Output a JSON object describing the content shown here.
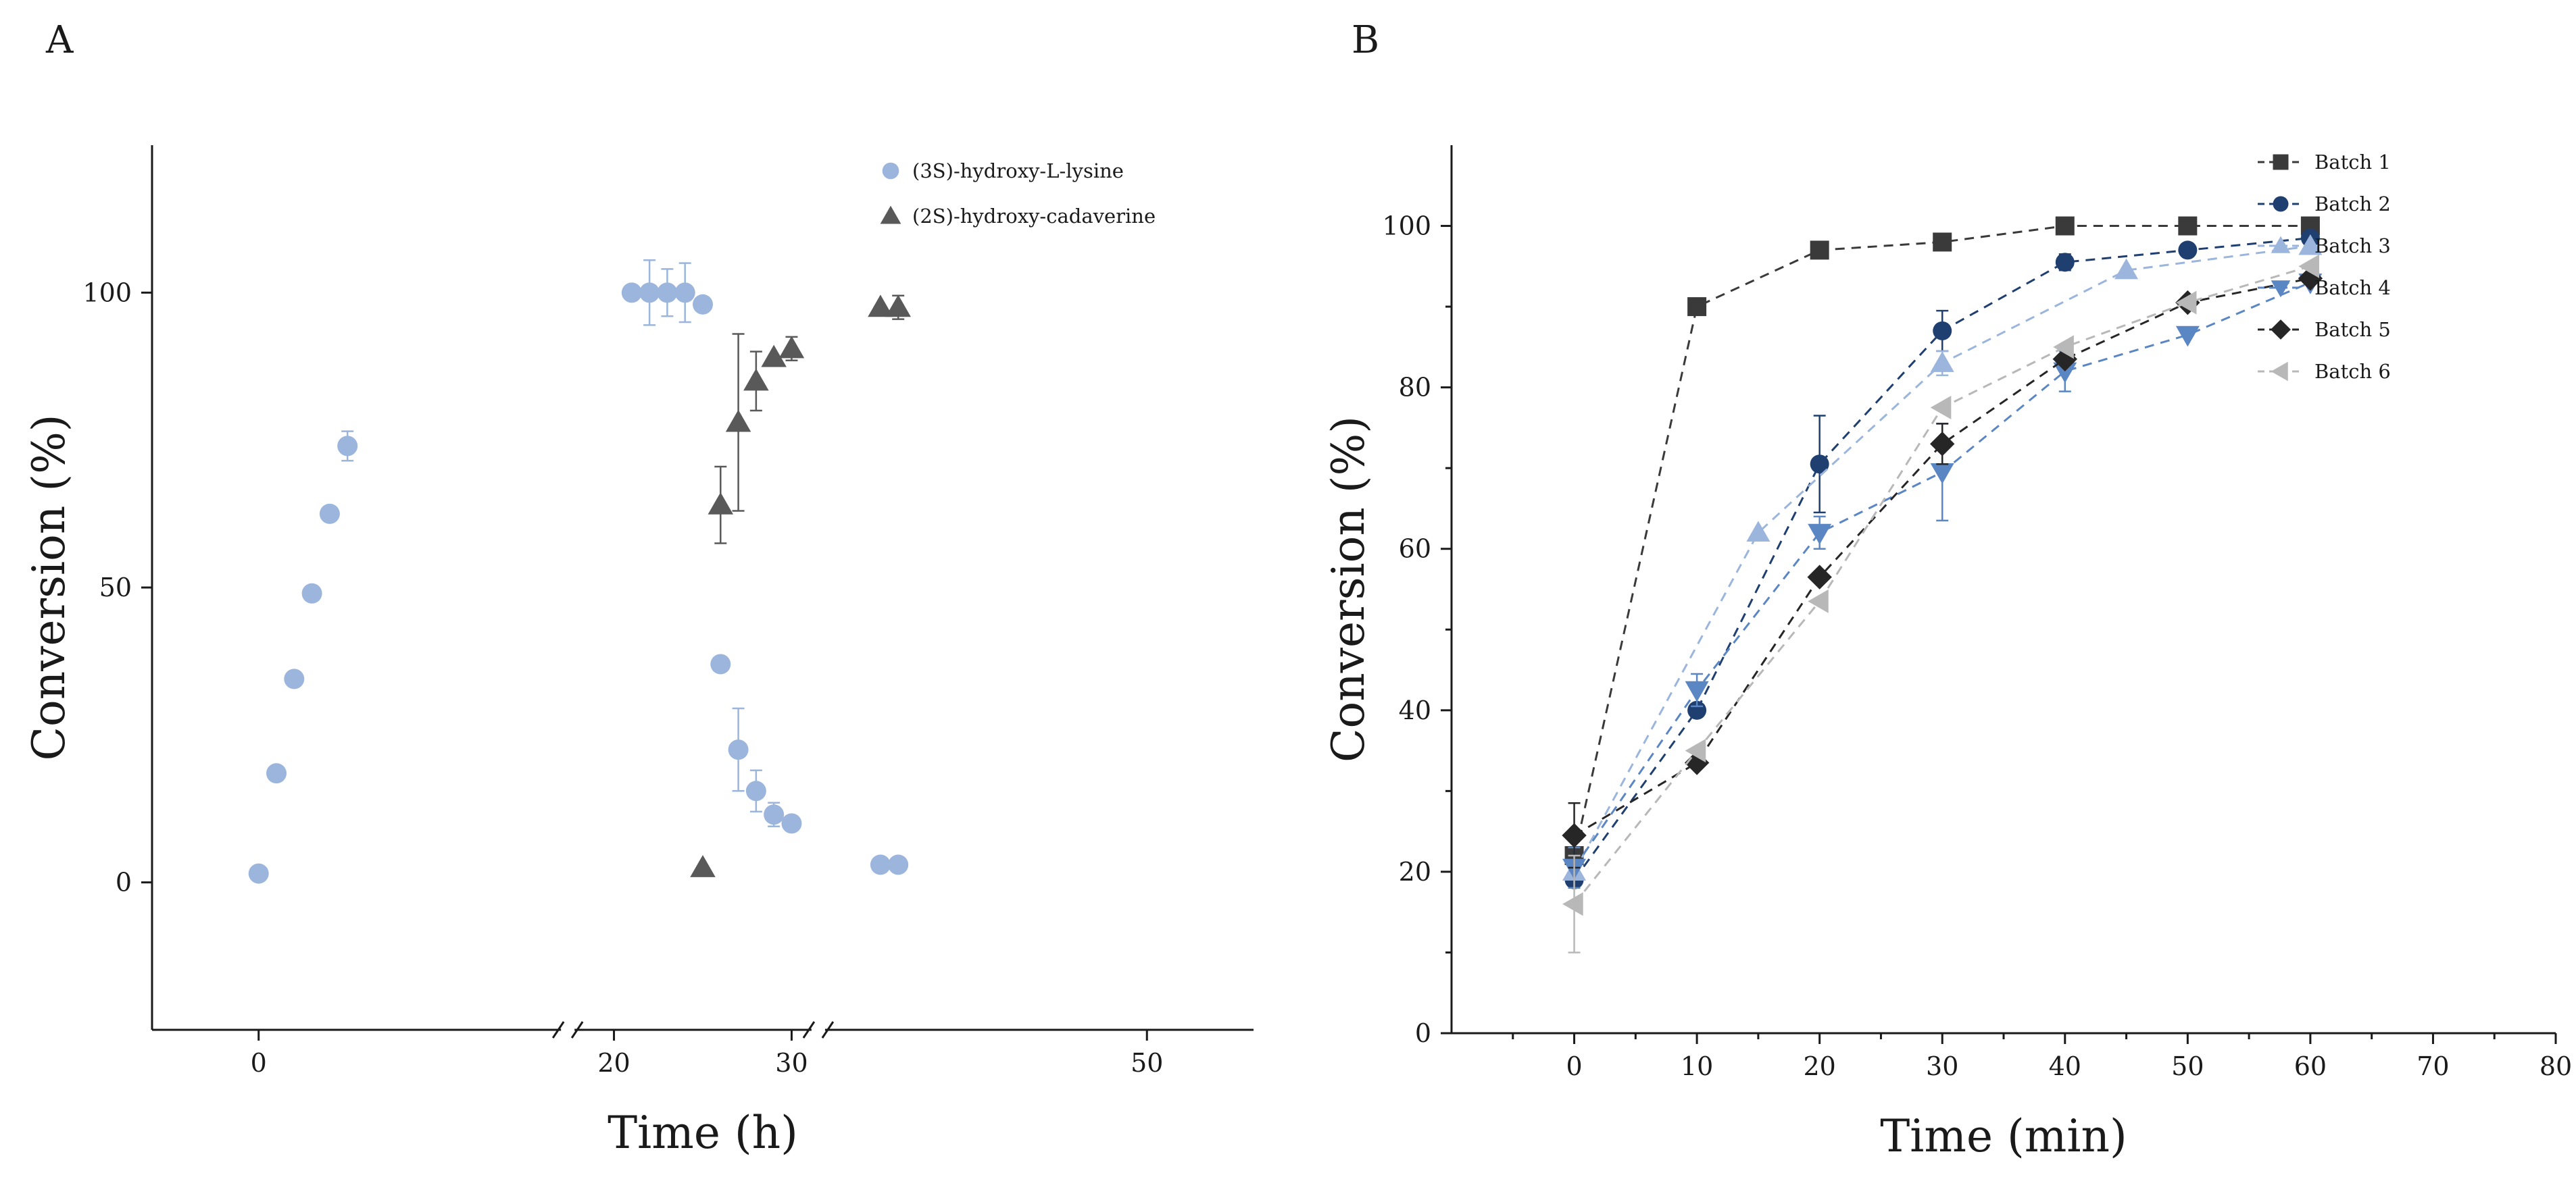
{
  "chart_data": [
    {
      "panel": "A",
      "type": "scatter",
      "xlabel": "Time (h)",
      "ylabel": "Conversion (%)",
      "xlim": [
        -6,
        56
      ],
      "ylim": [
        -25,
        125
      ],
      "x_break": true,
      "xticks": [
        0,
        20,
        30,
        50
      ],
      "yticks": [
        0,
        50,
        100
      ],
      "legend_position": "top-right",
      "series": [
        {
          "name": "(3S)-hydroxy-L-lysine",
          "marker": "circle",
          "color": "#9bb5dc",
          "x": [
            0,
            1,
            2,
            3,
            4,
            5,
            21,
            22,
            23,
            24,
            25,
            26,
            27,
            28,
            29,
            30,
            35,
            36
          ],
          "y": [
            1.5,
            18.5,
            34.5,
            49,
            62.5,
            74,
            100,
            100,
            100,
            100,
            98,
            37,
            22.5,
            15.5,
            11.5,
            10,
            3,
            3
          ],
          "err": [
            0,
            0,
            0,
            0,
            0,
            2.5,
            0,
            5.5,
            4,
            5,
            0,
            0,
            7,
            3.5,
            2,
            1,
            0,
            0
          ]
        },
        {
          "name": "(2S)-hydroxy-cadaverine",
          "marker": "triangle-up",
          "color": "#595959",
          "x": [
            25,
            26,
            27,
            28,
            29,
            30,
            35,
            36
          ],
          "y": [
            2.5,
            64,
            78,
            85,
            89,
            90.5,
            97.5,
            97.5
          ],
          "err": [
            0,
            6.5,
            15,
            5,
            0,
            2,
            0,
            2
          ]
        }
      ]
    },
    {
      "panel": "B",
      "type": "line",
      "xlabel": "Time (min)",
      "ylabel": "Conversion (%)",
      "xlim": [
        -10,
        80
      ],
      "ylim": [
        0,
        110
      ],
      "xticks": [
        0,
        10,
        20,
        30,
        40,
        50,
        60,
        70,
        80
      ],
      "yticks": [
        0,
        20,
        40,
        60,
        80,
        100
      ],
      "legend_position": "top-right",
      "series": [
        {
          "name": "Batch 1",
          "marker": "square",
          "color": "#3a3a3a",
          "x": [
            0,
            10,
            20,
            30,
            40,
            50,
            60
          ],
          "y": [
            22,
            90,
            97,
            98,
            100,
            100,
            100
          ],
          "err": [
            0,
            0,
            0,
            0,
            0,
            0,
            0
          ]
        },
        {
          "name": "Batch 2",
          "marker": "circle",
          "color": "#1f3f70",
          "x": [
            0,
            10,
            20,
            30,
            40,
            50,
            60
          ],
          "y": [
            19,
            40,
            70.5,
            87,
            95.5,
            97,
            98.5
          ],
          "err": [
            0,
            0,
            6,
            2.5,
            1,
            0,
            0
          ]
        },
        {
          "name": "Batch 3",
          "marker": "triangle-up",
          "color": "#9bb5dc",
          "x": [
            0,
            15,
            30,
            45,
            60
          ],
          "y": [
            20,
            62,
            83,
            94.5,
            97.5
          ],
          "err": [
            0,
            0,
            1.5,
            0,
            0
          ]
        },
        {
          "name": "Batch 4",
          "marker": "triangle-down",
          "color": "#5b86c4",
          "x": [
            0,
            10,
            20,
            30,
            40,
            50,
            60
          ],
          "y": [
            20.5,
            42.5,
            62,
            69.5,
            82,
            86.5,
            93
          ],
          "err": [
            2.5,
            2,
            2,
            6,
            2.5,
            0,
            0
          ]
        },
        {
          "name": "Batch 5",
          "marker": "diamond",
          "color": "#262626",
          "x": [
            0,
            10,
            20,
            30,
            40,
            50,
            60
          ],
          "y": [
            24.5,
            33.5,
            56.5,
            73,
            83.5,
            90.5,
            93.5
          ],
          "err": [
            4,
            0,
            0,
            2.5,
            0,
            0,
            0
          ]
        },
        {
          "name": "Batch 6",
          "marker": "triangle-left",
          "color": "#b8b8b8",
          "x": [
            0,
            10,
            20,
            30,
            40,
            50,
            60
          ],
          "y": [
            16,
            35,
            53.5,
            77.5,
            85,
            90.5,
            95
          ],
          "err": [
            6,
            0,
            0,
            0,
            0,
            0,
            0
          ]
        }
      ]
    }
  ]
}
